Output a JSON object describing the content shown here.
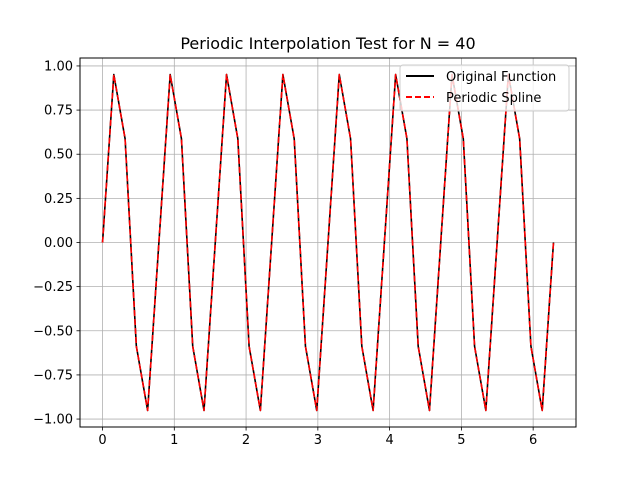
{
  "chart_data": {
    "type": "line",
    "title": "Periodic Interpolation Test for N = 40",
    "xlabel": "",
    "ylabel": "",
    "xlim": [
      -0.314,
      6.597
    ],
    "ylim": [
      -1.045,
      1.045
    ],
    "grid": true,
    "legend_position": "top-right",
    "x_ticks": [
      0,
      1,
      2,
      3,
      4,
      5,
      6
    ],
    "x_tick_labels": [
      "0",
      "1",
      "2",
      "3",
      "4",
      "5",
      "6"
    ],
    "y_ticks": [
      1.0,
      0.75,
      0.5,
      0.25,
      0.0,
      -0.25,
      -0.5,
      -0.75,
      -1.0
    ],
    "y_tick_labels": [
      "1.00",
      "0.75",
      "0.50",
      "0.25",
      "0.00",
      "−0.25",
      "−0.50",
      "−0.75",
      "−1.00"
    ],
    "series": [
      {
        "name": "Original Function",
        "color": "#000000",
        "dash": "solid",
        "x": [
          0.0,
          0.1571,
          0.3142,
          0.4712,
          0.6283,
          0.7854,
          0.9425,
          1.0996,
          1.2566,
          1.4137,
          1.5708,
          1.7279,
          1.885,
          2.042,
          2.1991,
          2.3562,
          2.5133,
          2.6704,
          2.8274,
          2.9845,
          3.1416,
          3.2987,
          3.4558,
          3.6128,
          3.7699,
          3.927,
          4.0841,
          4.2412,
          4.3982,
          4.5553,
          4.7124,
          4.8695,
          5.0265,
          5.1836,
          5.3407,
          5.4978,
          5.6549,
          5.8119,
          5.969,
          6.1261,
          6.2832
        ],
        "y": [
          0.0,
          0.9511,
          0.5878,
          -0.5878,
          -0.9511,
          0.0,
          0.9511,
          0.5878,
          -0.5878,
          -0.9511,
          0.0,
          0.9511,
          0.5878,
          -0.5878,
          -0.9511,
          0.0,
          0.9511,
          0.5878,
          -0.5878,
          -0.9511,
          0.0,
          0.9511,
          0.5878,
          -0.5878,
          -0.9511,
          0.0,
          0.9511,
          0.5878,
          -0.5878,
          -0.9511,
          0.0,
          0.9511,
          0.5878,
          -0.5878,
          -0.9511,
          0.0,
          0.9511,
          0.5878,
          -0.5878,
          -0.9511,
          0.0
        ]
      },
      {
        "name": "Periodic Spline",
        "color": "#ff0000",
        "dash": "dashed",
        "x": [
          0.0,
          0.1571,
          0.3142,
          0.4712,
          0.6283,
          0.7854,
          0.9425,
          1.0996,
          1.2566,
          1.4137,
          1.5708,
          1.7279,
          1.885,
          2.042,
          2.1991,
          2.3562,
          2.5133,
          2.6704,
          2.8274,
          2.9845,
          3.1416,
          3.2987,
          3.4558,
          3.6128,
          3.7699,
          3.927,
          4.0841,
          4.2412,
          4.3982,
          4.5553,
          4.7124,
          4.8695,
          5.0265,
          5.1836,
          5.3407,
          5.4978,
          5.6549,
          5.8119,
          5.969,
          6.1261,
          6.2832
        ],
        "y": [
          0.0,
          0.9511,
          0.5878,
          -0.5878,
          -0.9511,
          0.0,
          0.9511,
          0.5878,
          -0.5878,
          -0.9511,
          0.0,
          0.9511,
          0.5878,
          -0.5878,
          -0.9511,
          0.0,
          0.9511,
          0.5878,
          -0.5878,
          -0.9511,
          0.0,
          0.9511,
          0.5878,
          -0.5878,
          -0.9511,
          0.0,
          0.9511,
          0.5878,
          -0.5878,
          -0.9511,
          0.0,
          0.9511,
          0.5878,
          -0.5878,
          -0.9511,
          0.0,
          0.9511,
          0.5878,
          -0.5878,
          -0.9511,
          0.0
        ]
      }
    ]
  }
}
